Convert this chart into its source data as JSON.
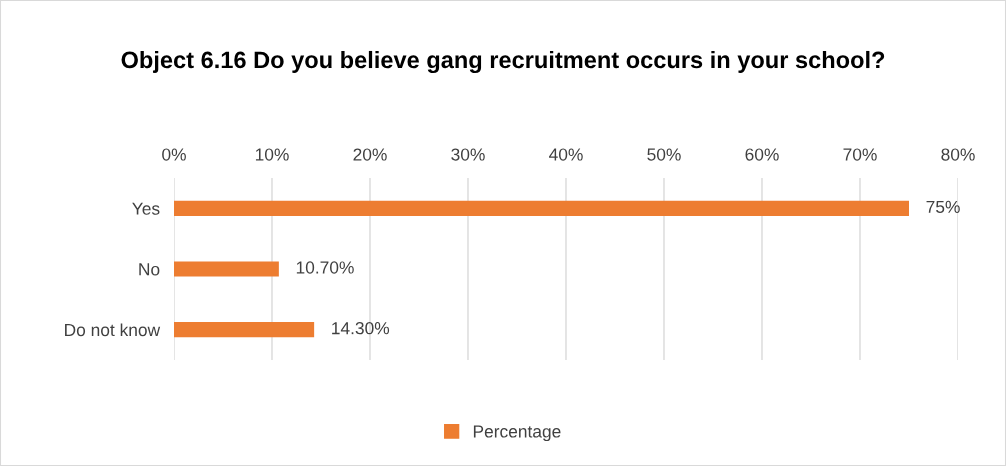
{
  "chart_data": {
    "type": "bar",
    "orientation": "horizontal",
    "title": "Object 6.16 Do you believe gang recruitment occurs in your school?",
    "categories": [
      "Yes",
      "No",
      "Do not know"
    ],
    "series": [
      {
        "name": "Percentage",
        "color": "#ed7d31",
        "values": [
          75,
          10.7,
          14.3
        ],
        "value_labels": [
          "75%",
          "10.70%",
          "14.30%"
        ]
      }
    ],
    "xlim": [
      0,
      80
    ],
    "xticks": [
      {
        "value": 0,
        "label": "0%"
      },
      {
        "value": 10,
        "label": "10%"
      },
      {
        "value": 20,
        "label": "20%"
      },
      {
        "value": 30,
        "label": "30%"
      },
      {
        "value": 40,
        "label": "40%"
      },
      {
        "value": 50,
        "label": "50%"
      },
      {
        "value": 60,
        "label": "60%"
      },
      {
        "value": 70,
        "label": "70%"
      },
      {
        "value": 80,
        "label": "80%"
      }
    ],
    "grid": "x",
    "legend": "bottom"
  }
}
